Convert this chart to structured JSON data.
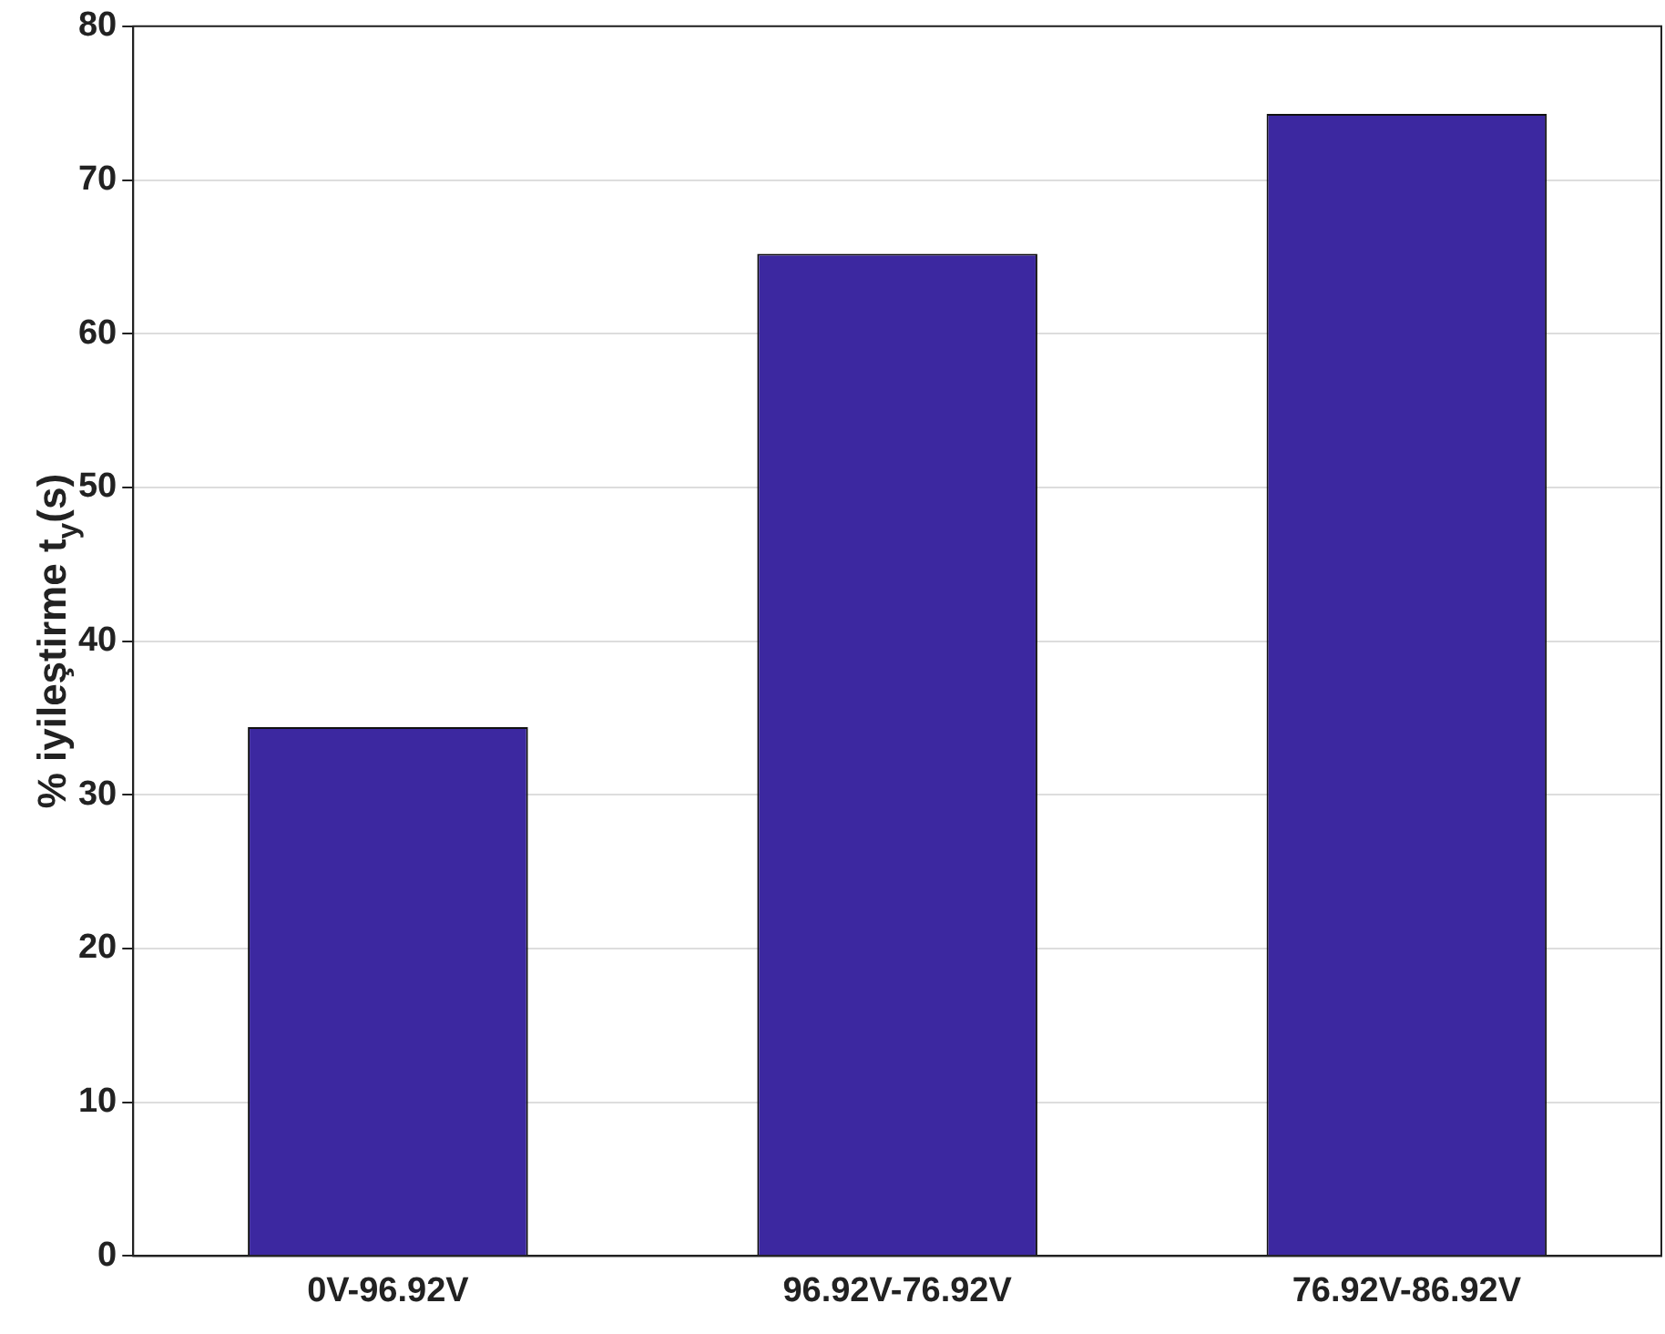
{
  "chart_data": {
    "type": "bar",
    "ylabel": "% iyileştirme t$_{y}$(s)",
    "categories": [
      "0V-96.92V",
      "96.92V-76.92V",
      "76.92V-86.92V"
    ],
    "values": [
      34.4,
      65.2,
      74.3
    ],
    "color": "#3c28a0",
    "ylim": [
      0,
      80
    ],
    "yticks": [
      0,
      10,
      20,
      30,
      40,
      50,
      60,
      70,
      80
    ],
    "grid": "y",
    "legend": false
  }
}
